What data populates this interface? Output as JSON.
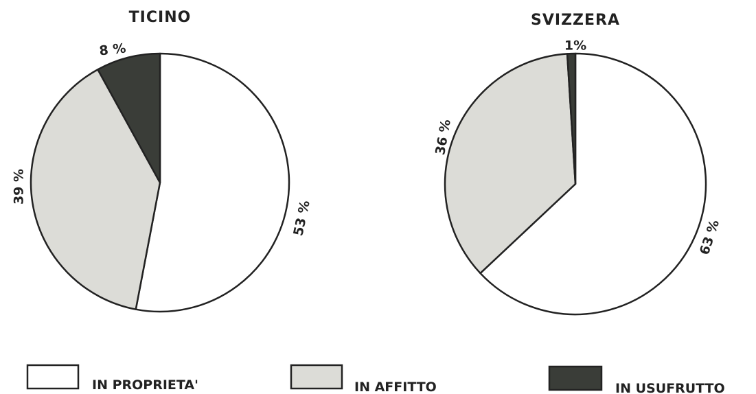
{
  "chart_data": [
    {
      "type": "pie",
      "title": "TICINO",
      "slices": [
        {
          "category": "IN PROPRIETA'",
          "value": 53,
          "label": "53 %"
        },
        {
          "category": "IN AFFITTO",
          "value": 39,
          "label": "39 %"
        },
        {
          "category": "IN USUFRUTTO",
          "value": 8,
          "label": "8 %"
        }
      ]
    },
    {
      "type": "pie",
      "title": "SVIZZERA",
      "slices": [
        {
          "category": "IN PROPRIETA'",
          "value": 63,
          "label": "63 %"
        },
        {
          "category": "IN AFFITTO",
          "value": 36,
          "label": "36 %"
        },
        {
          "category": "IN USUFRUTTO",
          "value": 1,
          "label": "1%"
        }
      ]
    }
  ],
  "legend": [
    {
      "label": "IN PROPRIETA'",
      "color": "#ffffff"
    },
    {
      "label": "IN AFFITTO",
      "color": "#dcdcd7"
    },
    {
      "label": "IN USUFRUTTO",
      "color": "#3a3d38"
    }
  ]
}
